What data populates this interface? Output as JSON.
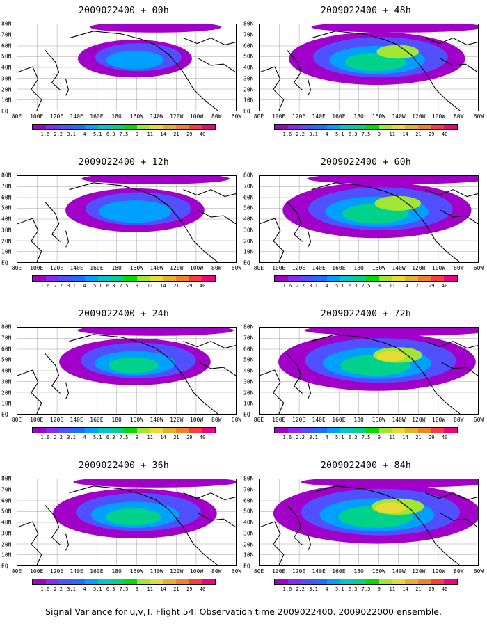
{
  "caption": "Signal Variance for u,v,T. Flight 54. Observation time 2009022400. 2009022000 ensemble.",
  "lat_labels": [
    "80N",
    "70N",
    "60N",
    "50N",
    "40N",
    "30N",
    "20N",
    "10N",
    "EQ"
  ],
  "lon_labels": [
    "80E",
    "100E",
    "120E",
    "140E",
    "160E",
    "180",
    "160W",
    "140W",
    "120W",
    "100W",
    "80W",
    "60W"
  ],
  "colorbar": {
    "labels": [
      "1.6",
      "2.2",
      "3.1",
      "4",
      "5.1",
      "6.3",
      "7.5",
      "9",
      "11",
      "14",
      "21",
      "29",
      "40"
    ],
    "colors": [
      "#a000c8",
      "#8c28f0",
      "#5050ff",
      "#1e6eff",
      "#00a0ff",
      "#00c8c8",
      "#00d28c",
      "#00dc00",
      "#a0e632",
      "#e6dc32",
      "#e6af2d",
      "#f08228",
      "#fa3c3c",
      "#f00082"
    ]
  },
  "chart_data": [
    {
      "type": "heatmap",
      "title": "2009022400 + 00h",
      "variable": "Signal Variance for u,v,T",
      "units": "",
      "levels": [
        1.6,
        2.2,
        3.1,
        4,
        5.1,
        6.3,
        7.5,
        9,
        11,
        14,
        21,
        29,
        40
      ]
    },
    {
      "type": "heatmap",
      "title": "2009022400 + 12h",
      "levels": [
        1.6,
        2.2,
        3.1,
        4,
        5.1,
        6.3,
        7.5,
        9,
        11,
        14,
        21,
        29,
        40
      ]
    },
    {
      "type": "heatmap",
      "title": "2009022400 + 24h",
      "levels": [
        1.6,
        2.2,
        3.1,
        4,
        5.1,
        6.3,
        7.5,
        9,
        11,
        14,
        21,
        29,
        40
      ]
    },
    {
      "type": "heatmap",
      "title": "2009022400 + 36h",
      "levels": [
        1.6,
        2.2,
        3.1,
        4,
        5.1,
        6.3,
        7.5,
        9,
        11,
        14,
        21,
        29,
        40
      ]
    },
    {
      "type": "heatmap",
      "title": "2009022400 + 48h",
      "levels": [
        1.6,
        2.2,
        3.1,
        4,
        5.1,
        6.3,
        7.5,
        9,
        11,
        14,
        21,
        29,
        40
      ]
    },
    {
      "type": "heatmap",
      "title": "2009022400 + 60h",
      "levels": [
        1.6,
        2.2,
        3.1,
        4,
        5.1,
        6.3,
        7.5,
        9,
        11,
        14,
        21,
        29,
        40
      ]
    },
    {
      "type": "heatmap",
      "title": "2009022400 + 72h",
      "levels": [
        1.6,
        2.2,
        3.1,
        4,
        5.1,
        6.3,
        7.5,
        9,
        11,
        14,
        21,
        29,
        40
      ]
    },
    {
      "type": "heatmap",
      "title": "2009022400 + 84h",
      "levels": [
        1.6,
        2.2,
        3.1,
        4,
        5.1,
        6.3,
        7.5,
        9,
        11,
        14,
        21,
        29,
        40
      ]
    }
  ]
}
